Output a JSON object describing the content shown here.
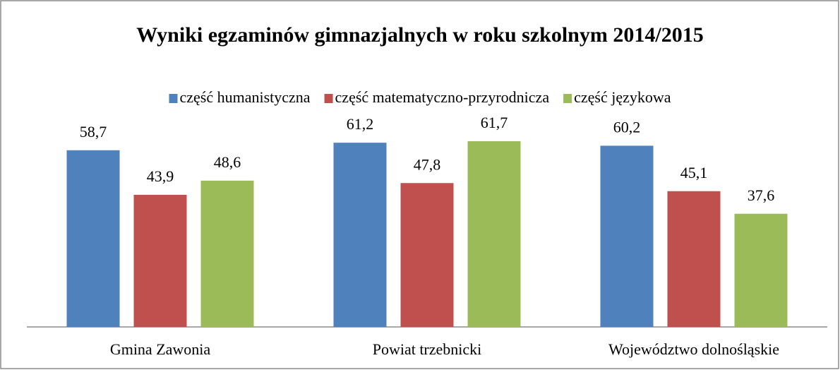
{
  "chart_data": {
    "type": "bar",
    "title": "Wyniki egzaminów gimnazjalnych w roku szkolnym 2014/2015",
    "categories": [
      "Gmina Zawonia",
      "Powiat trzebnicki",
      "Województwo dolnośląskie"
    ],
    "series": [
      {
        "name": "część humanistyczna",
        "color": "#4f81bd",
        "values": [
          58.7,
          61.2,
          60.2
        ],
        "value_labels": [
          "58,7",
          "61,2",
          "60,2"
        ]
      },
      {
        "name": "część matematyczno-przyrodnicza",
        "color": "#c0504d",
        "values": [
          43.9,
          47.8,
          45.1
        ],
        "value_labels": [
          "43,9",
          "47,8",
          "45,1"
        ]
      },
      {
        "name": "część językowa",
        "color": "#9bbb59",
        "values": [
          48.6,
          61.7,
          37.6
        ],
        "value_labels": [
          "48,6",
          "61,7",
          "37,6"
        ]
      }
    ],
    "legend": "top"
  }
}
